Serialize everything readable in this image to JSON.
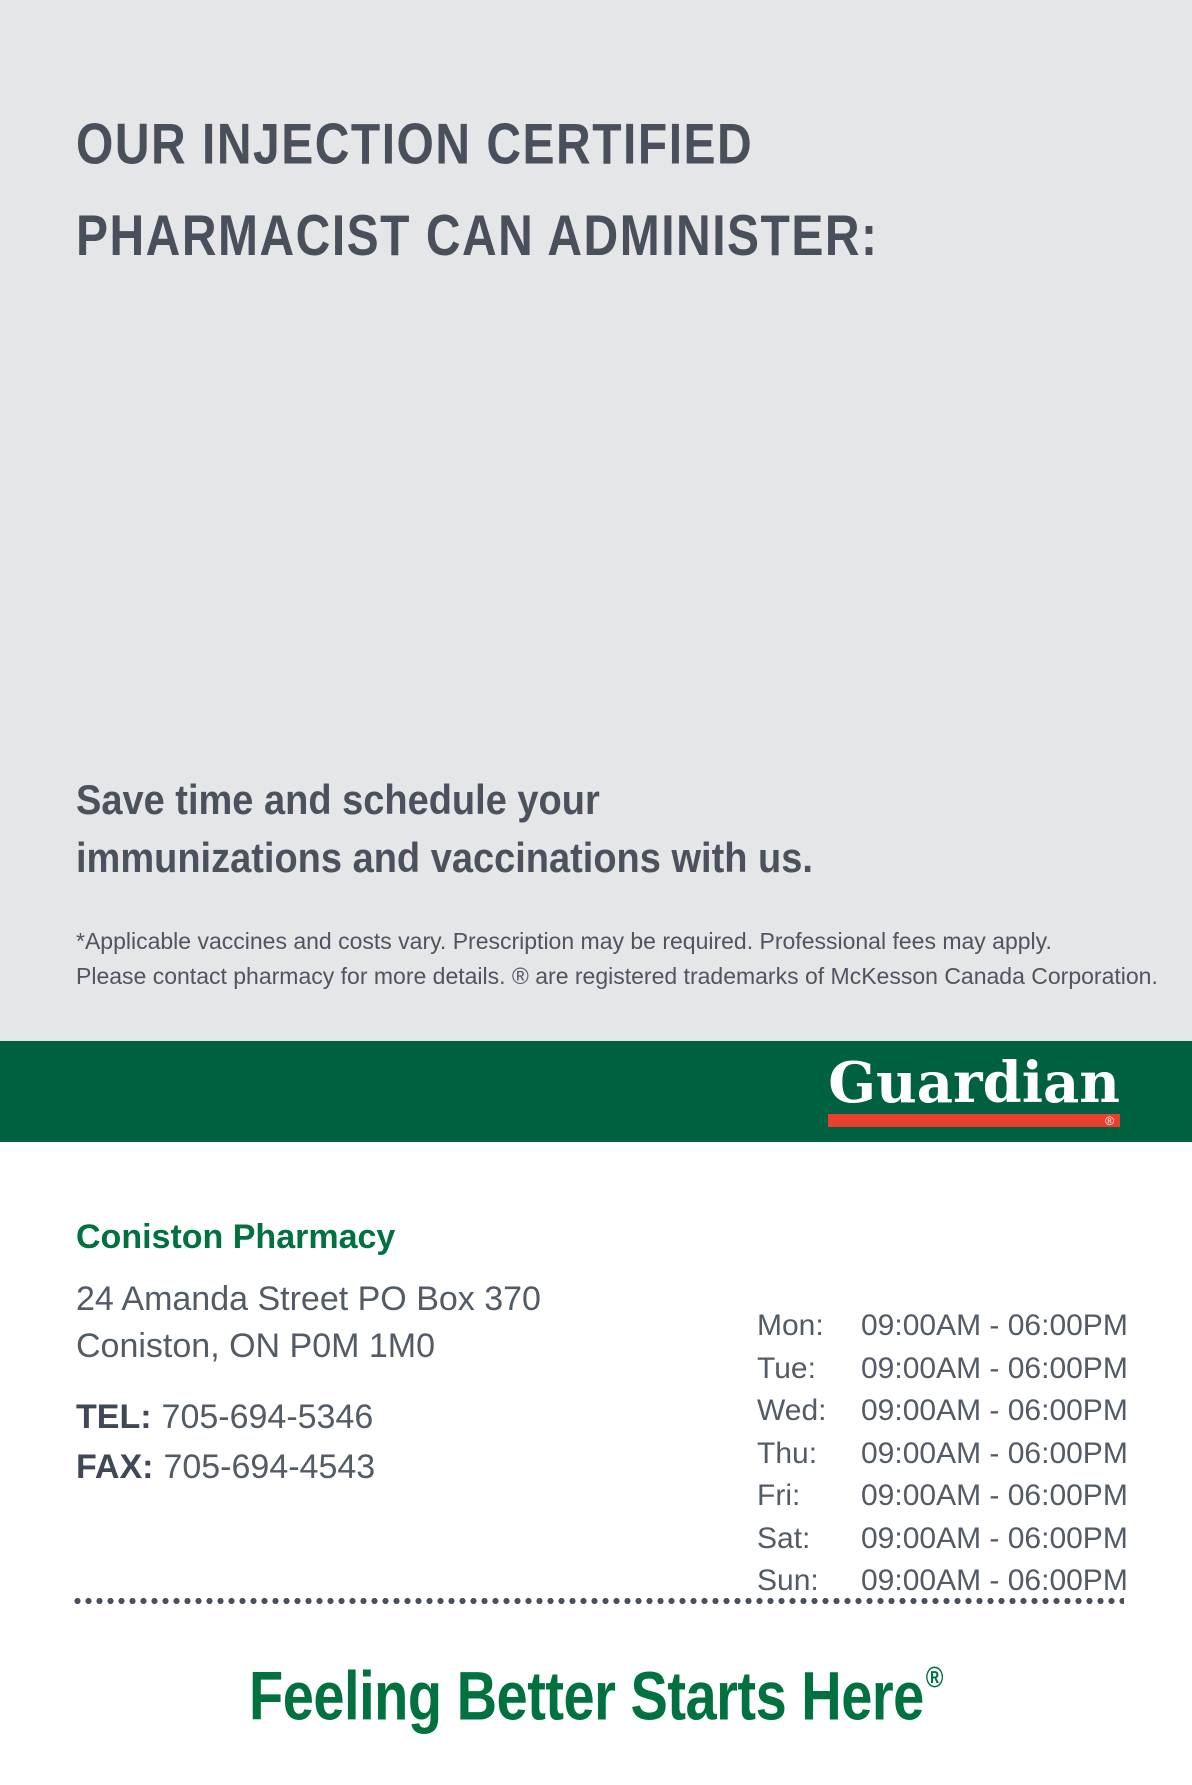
{
  "colors": {
    "background_gray": "#e5e6e8",
    "brand_green_band": "#006140",
    "brand_green_text": "#00713f",
    "brand_red": "#e9402e",
    "heading_slate": "#49505c",
    "body_gray": "#535b66"
  },
  "hero": {
    "heading_line1": "OUR INJECTION CERTIFIED",
    "heading_line2": "PHARMACIST CAN ADMINISTER:",
    "subheading_line1": "Save time and schedule your",
    "subheading_line2": "immunizations and vaccinations with us.",
    "disclaimer_line1": "*Applicable vaccines and costs vary. Prescription may be required. Professional fees may apply.",
    "disclaimer_line2": "Please contact pharmacy for more details. ® are registered trademarks of McKesson Canada Corporation."
  },
  "brand": {
    "logo_text": "Guardian",
    "registered_mark": "®"
  },
  "pharmacy": {
    "name": "Coniston Pharmacy",
    "address_line1": "24 Amanda Street PO Box 370",
    "address_line2": "Coniston, ON P0M 1M0",
    "tel_label": "TEL:",
    "tel_number": "705-694-5346",
    "fax_label": "FAX:",
    "fax_number": "705-694-4543"
  },
  "hours": {
    "rows": [
      {
        "day": "Mon:",
        "time": "09:00AM - 06:00PM"
      },
      {
        "day": "Tue:",
        "time": "09:00AM - 06:00PM"
      },
      {
        "day": "Wed:",
        "time": "09:00AM - 06:00PM"
      },
      {
        "day": "Thu:",
        "time": "09:00AM - 06:00PM"
      },
      {
        "day": "Fri:",
        "time": "09:00AM - 06:00PM"
      },
      {
        "day": "Sat:",
        "time": "09:00AM - 06:00PM"
      },
      {
        "day": "Sun:",
        "time": "09:00AM - 06:00PM"
      }
    ]
  },
  "footer": {
    "tagline": "Feeling Better Starts Here",
    "registered_mark": "®"
  }
}
